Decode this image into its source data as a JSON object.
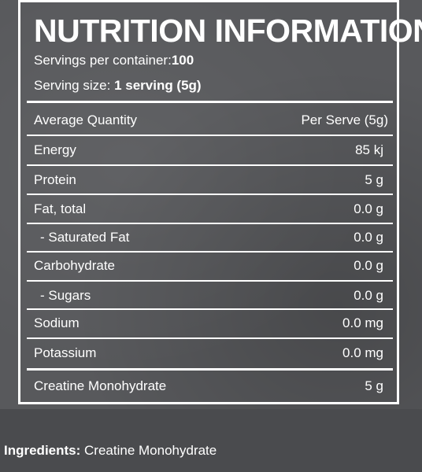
{
  "title": "NUTRITION INFORMATION",
  "servings": {
    "per_container_label": "Servings per container:",
    "per_container_value": "100",
    "serving_size_label": "Serving size:",
    "serving_size_value": "1 serving (5g)"
  },
  "table": {
    "header": {
      "name": "Average Quantity",
      "amount": "Per Serve (5g)"
    },
    "rows": [
      {
        "name": "Energy",
        "amount": "85 kj"
      },
      {
        "name": "Protein",
        "amount": "5 g"
      },
      {
        "name": "Fat, total",
        "amount": "0.0 g"
      },
      {
        "name": "- Saturated Fat",
        "amount": "0.0 g"
      },
      {
        "name": "Carbohydrate",
        "amount": "0.0 g"
      },
      {
        "name": "- Sugars",
        "amount": "0.0 g"
      },
      {
        "name": "Sodium",
        "amount": "0.0 mg"
      },
      {
        "name": "Potassium",
        "amount": "0.0 mg"
      },
      {
        "name": "Creatine Monohydrate",
        "amount": "5 g"
      }
    ]
  },
  "ingredients": {
    "label": "Ingredients:",
    "value": "Creatine Monohydrate"
  },
  "colors": {
    "panel_background": "#58595c",
    "page_background": "#4a4b4e",
    "text": "#ffffff"
  }
}
